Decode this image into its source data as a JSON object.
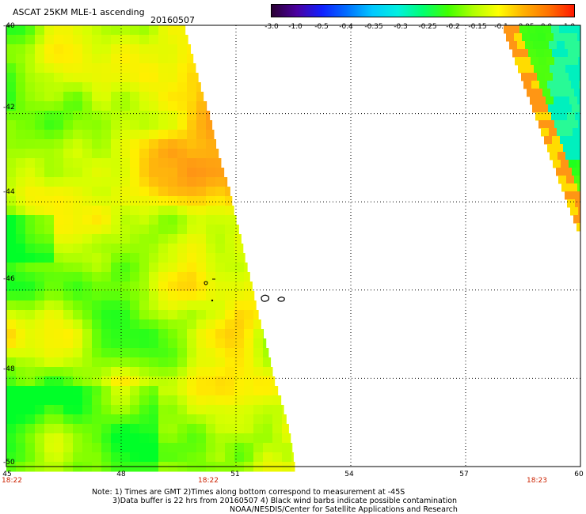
{
  "header": {
    "title": "ASCAT 25KM MLE-1 ascending",
    "date": "20160507"
  },
  "colorbar": {
    "tick_labels": [
      "-3.0",
      "-1.0",
      "-0.5",
      "-0.4",
      "-0.35",
      "-0.3",
      "-0.25",
      "-0.2",
      "-0.15",
      "-0.1",
      "-0.05",
      "0.0",
      "1.0"
    ],
    "colors": [
      "#2a0033",
      "#4b00a0",
      "#1020ff",
      "#0070ff",
      "#00c8ff",
      "#00f0e0",
      "#00ff70",
      "#40ff00",
      "#b0ff00",
      "#ffff00",
      "#ffb000",
      "#ff7000",
      "#ff1800"
    ]
  },
  "map": {
    "latitude_labels": [
      "-40",
      "-42",
      "-44",
      "-46",
      "-48",
      "-50"
    ],
    "longitude_labels": [
      "45",
      "48",
      "51",
      "54",
      "57",
      "60"
    ],
    "time_labels": [
      "18:22",
      "18:22",
      "18:23"
    ],
    "land_color": "#ffffff",
    "grid_style": "dotted"
  },
  "footer": {
    "note_line1": "Note: 1) Times are GMT 2)Times along bottom correspond to measurement at -45S",
    "note_line2": "3)Data buffer is 22 hrs from 20160507 4) Black wind barbs indicate possible contamination",
    "note_line3": "NOAA/NESDIS/Center for Satellite Applications and Research"
  }
}
